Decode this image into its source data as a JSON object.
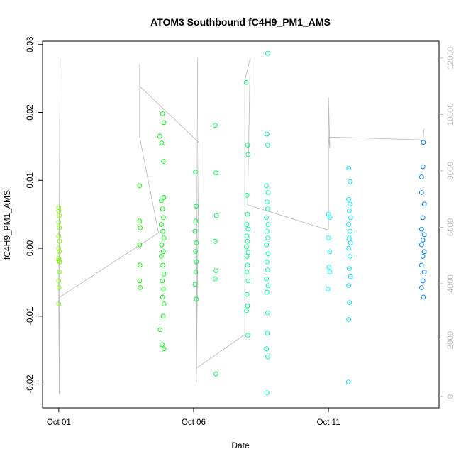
{
  "chart_data": {
    "type": "scatter",
    "title": "ATOM3 Southbound fC4H9_PM1_AMS",
    "xlabel": "Date",
    "ylabel": "fC4H9_PM1_AMS",
    "x_tick_labels": [
      "Oct 01",
      "Oct 06",
      "Oct 11"
    ],
    "x_tick_days": [
      1,
      6,
      11
    ],
    "xlim_days": [
      0.4,
      15.1
    ],
    "ylim": [
      -0.0235,
      0.0305
    ],
    "y_ticks": [
      -0.02,
      -0.01,
      0.0,
      0.01,
      0.02,
      0.03
    ],
    "y_tick_labels": [
      "-0.02",
      "-0.01",
      "0.00",
      "0.01",
      "0.02",
      "0.03"
    ],
    "y2_ticks": [
      0,
      2000,
      4000,
      6000,
      8000,
      10000,
      12000
    ],
    "y2_tick_labels": [
      "0",
      "2000",
      "4000",
      "6000",
      "8000",
      "10000",
      "12000"
    ],
    "y2lim": [
      -400,
      12600
    ],
    "colors": {
      "line": "#bdbdbd",
      "axis": "#000000",
      "points_start": "#80ff00",
      "points_end": "#0080ff"
    },
    "points": [
      {
        "day": 1.0,
        "y": 0.006
      },
      {
        "day": 1.0,
        "y": 0.0055
      },
      {
        "day": 1.02,
        "y": 0.0048
      },
      {
        "day": 1.0,
        "y": 0.0038
      },
      {
        "day": 1.02,
        "y": 0.003
      },
      {
        "day": 1.0,
        "y": 0.0018
      },
      {
        "day": 1.03,
        "y": 0.001
      },
      {
        "day": 1.0,
        "y": 0.0
      },
      {
        "day": 1.02,
        "y": -0.0005
      },
      {
        "day": 1.0,
        "y": -0.0015
      },
      {
        "day": 1.03,
        "y": -0.002
      },
      {
        "day": 1.0,
        "y": -0.0018
      },
      {
        "day": 1.02,
        "y": -0.0035
      },
      {
        "day": 1.0,
        "y": -0.0048
      },
      {
        "day": 1.01,
        "y": -0.0058
      },
      {
        "day": 1.0,
        "y": -0.0082
      },
      {
        "day": 4.0,
        "y": 0.0092
      },
      {
        "day": 4.0,
        "y": 0.004
      },
      {
        "day": 4.02,
        "y": 0.003
      },
      {
        "day": 4.0,
        "y": 0.0005
      },
      {
        "day": 4.01,
        "y": -0.0025
      },
      {
        "day": 4.0,
        "y": -0.0048
      },
      {
        "day": 4.02,
        "y": -0.0058
      },
      {
        "day": 4.75,
        "y": 0.0165
      },
      {
        "day": 4.85,
        "y": 0.0198
      },
      {
        "day": 4.9,
        "y": 0.0185
      },
      {
        "day": 4.82,
        "y": 0.0155
      },
      {
        "day": 4.88,
        "y": 0.0128
      },
      {
        "day": 4.9,
        "y": 0.0075
      },
      {
        "day": 4.8,
        "y": 0.007
      },
      {
        "day": 4.85,
        "y": 0.0058
      },
      {
        "day": 4.88,
        "y": 0.0045
      },
      {
        "day": 4.8,
        "y": 0.0035
      },
      {
        "day": 4.86,
        "y": 0.0025
      },
      {
        "day": 4.9,
        "y": 0.0015
      },
      {
        "day": 4.82,
        "y": 0.0005
      },
      {
        "day": 4.88,
        "y": -0.0005
      },
      {
        "day": 4.8,
        "y": -0.0012
      },
      {
        "day": 4.86,
        "y": -0.0025
      },
      {
        "day": 4.9,
        "y": -0.0038
      },
      {
        "day": 4.84,
        "y": -0.0048
      },
      {
        "day": 4.88,
        "y": -0.006
      },
      {
        "day": 4.85,
        "y": -0.0072
      },
      {
        "day": 4.9,
        "y": -0.0082
      },
      {
        "day": 4.87,
        "y": -0.01
      },
      {
        "day": 4.76,
        "y": -0.012
      },
      {
        "day": 4.83,
        "y": -0.0142
      },
      {
        "day": 4.9,
        "y": -0.0148
      },
      {
        "day": 6.07,
        "y": 0.0112
      },
      {
        "day": 6.1,
        "y": 0.0062
      },
      {
        "day": 6.08,
        "y": 0.004
      },
      {
        "day": 6.05,
        "y": 0.0025
      },
      {
        "day": 6.1,
        "y": 0.0008
      },
      {
        "day": 6.07,
        "y": -0.0005
      },
      {
        "day": 6.1,
        "y": -0.002
      },
      {
        "day": 6.08,
        "y": -0.0035
      },
      {
        "day": 6.05,
        "y": -0.0053
      },
      {
        "day": 6.1,
        "y": -0.0075
      },
      {
        "day": 6.8,
        "y": 0.0181
      },
      {
        "day": 6.83,
        "y": 0.0111
      },
      {
        "day": 6.85,
        "y": 0.0048
      },
      {
        "day": 6.8,
        "y": 0.001
      },
      {
        "day": 6.83,
        "y": -0.0033
      },
      {
        "day": 6.8,
        "y": -0.0045
      },
      {
        "day": 6.83,
        "y": -0.0185
      },
      {
        "day": 7.95,
        "y": 0.0244
      },
      {
        "day": 8.0,
        "y": 0.0152
      },
      {
        "day": 8.02,
        "y": 0.0138
      },
      {
        "day": 7.98,
        "y": 0.0078
      },
      {
        "day": 8.0,
        "y": 0.005
      },
      {
        "day": 7.97,
        "y": 0.0035
      },
      {
        "day": 8.02,
        "y": 0.0028
      },
      {
        "day": 7.98,
        "y": 0.0018
      },
      {
        "day": 8.0,
        "y": 0.001
      },
      {
        "day": 7.96,
        "y": 0.0002
      },
      {
        "day": 8.02,
        "y": -0.0006
      },
      {
        "day": 7.98,
        "y": -0.0012
      },
      {
        "day": 8.0,
        "y": -0.0025
      },
      {
        "day": 7.97,
        "y": -0.0035
      },
      {
        "day": 8.02,
        "y": -0.0048
      },
      {
        "day": 7.98,
        "y": -0.0068
      },
      {
        "day": 8.0,
        "y": -0.0085
      },
      {
        "day": 7.96,
        "y": -0.0092
      },
      {
        "day": 8.01,
        "y": -0.0128
      },
      {
        "day": 8.75,
        "y": 0.0287
      },
      {
        "day": 8.72,
        "y": 0.0168
      },
      {
        "day": 8.75,
        "y": 0.0152
      },
      {
        "day": 8.7,
        "y": 0.0092
      },
      {
        "day": 8.76,
        "y": 0.0082
      },
      {
        "day": 8.72,
        "y": 0.0068
      },
      {
        "day": 8.75,
        "y": 0.0058
      },
      {
        "day": 8.7,
        "y": 0.0045
      },
      {
        "day": 8.76,
        "y": 0.0035
      },
      {
        "day": 8.72,
        "y": 0.0025
      },
      {
        "day": 8.75,
        "y": 0.0015
      },
      {
        "day": 8.7,
        "y": 0.0005
      },
      {
        "day": 8.76,
        "y": -0.0008
      },
      {
        "day": 8.72,
        "y": -0.002
      },
      {
        "day": 8.75,
        "y": -0.0032
      },
      {
        "day": 8.7,
        "y": -0.0045
      },
      {
        "day": 8.76,
        "y": -0.0055
      },
      {
        "day": 8.72,
        "y": -0.0065
      },
      {
        "day": 8.75,
        "y": -0.0095
      },
      {
        "day": 8.73,
        "y": -0.0125
      },
      {
        "day": 8.7,
        "y": -0.0148
      },
      {
        "day": 8.75,
        "y": -0.016
      },
      {
        "day": 8.72,
        "y": -0.0213
      },
      {
        "day": 11.0,
        "y": 0.005
      },
      {
        "day": 11.05,
        "y": 0.0045
      },
      {
        "day": 11.0,
        "y": 0.0015
      },
      {
        "day": 11.05,
        "y": -0.0005
      },
      {
        "day": 11.02,
        "y": -0.0028
      },
      {
        "day": 11.05,
        "y": -0.0035
      },
      {
        "day": 10.98,
        "y": -0.006
      },
      {
        "day": 11.75,
        "y": 0.0118
      },
      {
        "day": 11.8,
        "y": 0.0098
      },
      {
        "day": 11.75,
        "y": 0.0072
      },
      {
        "day": 11.8,
        "y": 0.0065
      },
      {
        "day": 11.77,
        "y": 0.0055
      },
      {
        "day": 11.82,
        "y": 0.0045
      },
      {
        "day": 11.75,
        "y": 0.0035
      },
      {
        "day": 11.8,
        "y": 0.0025
      },
      {
        "day": 11.77,
        "y": 0.0015
      },
      {
        "day": 11.82,
        "y": 0.0008
      },
      {
        "day": 11.75,
        "y": 0.0
      },
      {
        "day": 11.8,
        "y": -0.0012
      },
      {
        "day": 11.77,
        "y": -0.003
      },
      {
        "day": 11.82,
        "y": -0.0042
      },
      {
        "day": 11.75,
        "y": -0.0055
      },
      {
        "day": 11.78,
        "y": -0.008
      },
      {
        "day": 11.75,
        "y": -0.0105
      },
      {
        "day": 11.74,
        "y": -0.0197
      },
      {
        "day": 14.45,
        "y": 0.0105
      },
      {
        "day": 14.52,
        "y": 0.0156
      },
      {
        "day": 14.5,
        "y": 0.012
      },
      {
        "day": 14.45,
        "y": 0.0082
      },
      {
        "day": 14.55,
        "y": 0.0065
      },
      {
        "day": 14.5,
        "y": 0.0045
      },
      {
        "day": 14.45,
        "y": 0.0028
      },
      {
        "day": 14.55,
        "y": 0.002
      },
      {
        "day": 14.5,
        "y": 0.0012
      },
      {
        "day": 14.45,
        "y": 0.0005
      },
      {
        "day": 14.55,
        "y": -0.0005
      },
      {
        "day": 14.5,
        "y": -0.0012
      },
      {
        "day": 14.45,
        "y": -0.0025
      },
      {
        "day": 14.55,
        "y": -0.0035
      },
      {
        "day": 14.5,
        "y": -0.0048
      },
      {
        "day": 14.45,
        "y": -0.0058
      },
      {
        "day": 14.52,
        "y": -0.0072
      }
    ],
    "altitude_line": [
      {
        "day": 1.0,
        "alt": 3500
      },
      {
        "day": 1.05,
        "alt": 12000
      },
      {
        "day": 1.02,
        "alt": 100
      },
      {
        "day": 1.0,
        "alt": 3500
      },
      {
        "day": 4.7,
        "alt": 5800
      },
      {
        "day": 4.0,
        "alt": 9200
      },
      {
        "day": 4.0,
        "alt": 11800
      },
      {
        "day": 4.0,
        "alt": 11000
      },
      {
        "day": 6.2,
        "alt": 9000
      },
      {
        "day": 6.1,
        "alt": 500
      },
      {
        "day": 6.15,
        "alt": 12000
      },
      {
        "day": 6.1,
        "alt": 1000
      },
      {
        "day": 7.9,
        "alt": 2200
      },
      {
        "day": 7.9,
        "alt": 11200
      },
      {
        "day": 8.1,
        "alt": 12000
      },
      {
        "day": 8.0,
        "alt": 6800
      },
      {
        "day": 11.0,
        "alt": 5900
      },
      {
        "day": 11.0,
        "alt": 10600
      },
      {
        "day": 11.05,
        "alt": 8800
      },
      {
        "day": 11.0,
        "alt": 9200
      },
      {
        "day": 14.5,
        "alt": 9100
      },
      {
        "day": 14.55,
        "alt": 9500
      }
    ]
  }
}
